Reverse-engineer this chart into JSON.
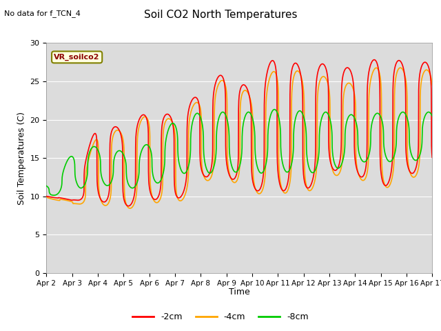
{
  "title": "Soil CO2 North Temperatures",
  "subtitle": "No data for f_TCN_4",
  "xlabel": "Time",
  "ylabel": "Soil Temperatures (C)",
  "legend_label": "VR_soilco2",
  "ylim": [
    0,
    30
  ],
  "yticks": [
    0,
    5,
    10,
    15,
    20,
    25,
    30
  ],
  "xtick_labels": [
    "Apr 2",
    "Apr 3",
    "Apr 4",
    "Apr 5",
    "Apr 6",
    "Apr 7",
    "Apr 8",
    "Apr 9",
    "Apr 10",
    "Apr 11",
    "Apr 12",
    "Apr 13",
    "Apr 14",
    "Apr 15",
    "Apr 16",
    "Apr 17"
  ],
  "colors": {
    "2cm": "#ff0000",
    "4cm": "#ffa500",
    "8cm": "#00cc00"
  },
  "background_color": "#dcdcdc",
  "fig_background": "#ffffff",
  "line_width": 1.2,
  "grid_color": "#ffffff",
  "peaks_2cm": [
    10.2,
    9.5,
    20.0,
    18.7,
    21.3,
    20.5,
    23.7,
    26.5,
    23.7,
    29.0,
    26.7,
    27.5,
    26.5,
    28.3,
    27.5,
    28.5
  ],
  "troughs_2cm": [
    10.0,
    9.5,
    9.5,
    8.5,
    9.7,
    9.2,
    12.5,
    12.7,
    10.7,
    10.8,
    10.5,
    13.5,
    13.0,
    11.0,
    13.0,
    14.5
  ],
  "peaks_4cm": [
    10.0,
    9.3,
    19.0,
    18.5,
    21.0,
    19.8,
    23.0,
    25.8,
    23.0,
    27.3,
    26.0,
    25.5,
    24.5,
    27.5,
    26.5,
    27.5
  ],
  "troughs_4cm": [
    9.8,
    9.0,
    9.0,
    8.2,
    9.3,
    8.8,
    12.0,
    12.3,
    10.3,
    10.5,
    10.2,
    12.8,
    12.5,
    10.8,
    12.5,
    14.0
  ],
  "peaks_8cm": [
    11.5,
    16.5,
    16.5,
    15.7,
    17.2,
    20.5,
    21.0,
    21.0,
    21.0,
    21.5,
    21.0,
    21.0,
    20.5,
    21.0,
    21.0,
    21.5
  ],
  "troughs_8cm": [
    10.0,
    11.0,
    11.5,
    11.0,
    11.5,
    13.0,
    13.0,
    13.2,
    13.0,
    13.2,
    13.0,
    13.5,
    14.5,
    14.5,
    14.7,
    15.0
  ]
}
